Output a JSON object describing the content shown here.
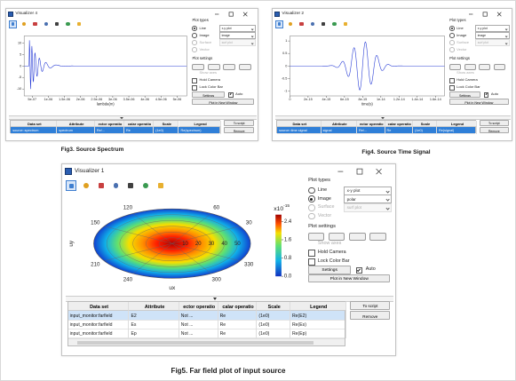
{
  "figures": [
    {
      "caption": "Fig3.  Source Spectrum",
      "window": {
        "title": "Visualizer 4",
        "plot": {
          "type": "line",
          "xlabel": "lambda(m)",
          "xlim": [
            2.5e-07,
            5.3e-06
          ],
          "xticks": [
            {
              "value": 5e-07,
              "label": "5e-07"
            },
            {
              "value": 1e-06,
              "label": "1e-06"
            },
            {
              "value": 1.5e-06,
              "label": "1.5e-06"
            },
            {
              "value": 2e-06,
              "label": "2e-06"
            },
            {
              "value": 2.5e-06,
              "label": "2.5e-06"
            },
            {
              "value": 3e-06,
              "label": "3e-06"
            },
            {
              "value": 3.5e-06,
              "label": "3.5e-06"
            },
            {
              "value": 4e-06,
              "label": "4e-06"
            },
            {
              "value": 4.5e-06,
              "label": "4.5e-06"
            },
            {
              "value": 5e-06,
              "label": "5e-06"
            }
          ],
          "ylim": [
            -13,
            13
          ],
          "yticks": [
            10,
            5,
            0,
            -5,
            -10
          ],
          "color": "#2b3fd6"
        },
        "plot_types": {
          "heading": "Plot types",
          "selected": "Line",
          "options": [
            {
              "label": "Line",
              "dropdown": "x-y plot"
            },
            {
              "label": "Image",
              "dropdown": "image"
            },
            {
              "label": "Surface",
              "dropdown": "surf plot"
            },
            {
              "label": "Vector"
            }
          ]
        },
        "plot_settings": {
          "heading": "Plot settings",
          "show_axes": "Show axes",
          "hold_camera": "Hold Camera",
          "lock_color_bar": "Lock Color Bar",
          "settings_button": "Settings",
          "auto": "Auto",
          "auto_checked": true,
          "new_window": "Plot in New Window"
        },
        "table": {
          "columns": [
            "Data set",
            "Attribute",
            "ector operatio",
            "calar operatio",
            "Scale",
            "Legend"
          ],
          "rows": [
            [
              "source::spectrum",
              "spectrum",
              "Re/...",
              "Re",
              "(1e0)",
              "Re(spectrum)"
            ]
          ],
          "selected_row": 0
        },
        "buttons": [
          "To script",
          "Remove"
        ]
      }
    },
    {
      "caption": "Fig4. Source Time Signal",
      "window": {
        "title": "Visualizer 2",
        "plot": {
          "type": "line",
          "xlabel": "time(s)",
          "xlim": [
            0,
            1.7e-14
          ],
          "xticks": [
            0,
            2e-15,
            4e-15,
            6e-15,
            8e-15,
            1e-14,
            1.2e-14,
            1.4e-14,
            1.6e-14
          ],
          "ylim": [
            -1.2,
            1.2
          ],
          "yticks": [
            1,
            0.5,
            0,
            -0.5,
            -1
          ],
          "color": "#2b3fd6"
        },
        "plot_types": {
          "heading": "Plot types",
          "selected": "Line",
          "options": [
            {
              "label": "Line",
              "dropdown": "x-y plot"
            },
            {
              "label": "Image",
              "dropdown": "image"
            },
            {
              "label": "Surface",
              "dropdown": "surf plot"
            },
            {
              "label": "Vector"
            }
          ]
        },
        "plot_settings": {
          "heading": "Plot settings",
          "show_axes": "Show axes",
          "hold_camera": "Hold Camera",
          "lock_color_bar": "Lock Color Bar",
          "settings_button": "Settings",
          "auto": "Auto",
          "auto_checked": true,
          "new_window": "Plot in New Window"
        },
        "table": {
          "columns": [
            "Data set",
            "Attribute",
            "ector operatio",
            "calar operatio",
            "Scale",
            "Legend"
          ],
          "rows": [
            [
              "source::time signal",
              "signal",
              "Re/...",
              "Re",
              "(1e0)",
              "Re(signal)"
            ]
          ],
          "selected_row": 0
        },
        "buttons": [
          "To script",
          "Remove"
        ]
      }
    },
    {
      "caption": "Fig5. Far field plot of input source",
      "window": {
        "title": "Visualizer 1",
        "plot": {
          "type": "polar",
          "xlabel": "ux",
          "ylabel": "uy",
          "angle_ticks": [
            30,
            60,
            120,
            150,
            210,
            240,
            300,
            330
          ],
          "rlim": [
            0,
            60
          ],
          "r_ticks": [
            10,
            20,
            30,
            40,
            50
          ],
          "colorbar": {
            "lim": [
              0,
              2.7
            ],
            "ticks": [
              2.4,
              1.6,
              0.8,
              {
                "value": 0,
                "label": "0.0"
              }
            ],
            "multiplier": "x10",
            "exponent": "-15"
          }
        },
        "plot_types": {
          "heading": "Plot types",
          "selected": "Image",
          "options": [
            {
              "label": "Line",
              "dropdown": "x-y plot"
            },
            {
              "label": "Image",
              "dropdown": "polar"
            },
            {
              "label": "Surface",
              "dropdown": "surf plot"
            },
            {
              "label": "Vector"
            }
          ]
        },
        "plot_settings": {
          "heading": "Plot settings",
          "show_axes": "Show axes",
          "hold_camera": "Hold Camera",
          "lock_color_bar": "Lock Color Bar",
          "settings_button": "Settings",
          "auto": "Auto",
          "auto_checked": true,
          "new_window": "Plot in New Window"
        },
        "table": {
          "columns": [
            "Data set",
            "Attribute",
            "ector operatio",
            "calar operatio",
            "Scale",
            "Legend"
          ],
          "rows": [
            [
              "input_monitor:farfield",
              "E2",
              "Not ...",
              "Re",
              "(1e0)",
              "Re(E2)"
            ],
            [
              "input_monitor:farfield",
              "Es",
              "Not ...",
              "Re",
              "(1e0)",
              "Re(Es)"
            ],
            [
              "input_monitor:farfield",
              "Ep",
              "Not ...",
              "Re",
              "(1e0)",
              "Re(Ep)"
            ]
          ],
          "selected_row": 0
        },
        "buttons": [
          "To script",
          "Remove"
        ]
      }
    }
  ]
}
